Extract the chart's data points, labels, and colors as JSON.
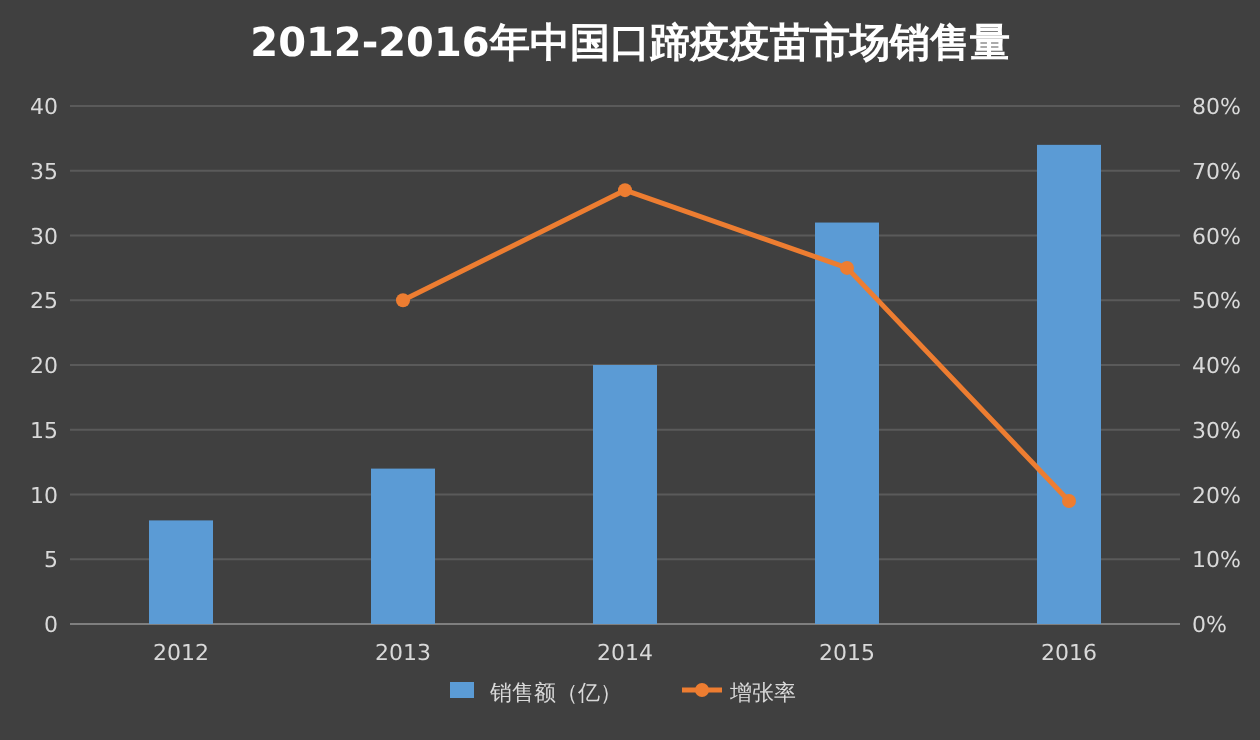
{
  "chart_data": {
    "type": "bar",
    "title": "2012-2016年中国口蹄疫疫苗市场销售量",
    "categories": [
      "2012",
      "2013",
      "2014",
      "2015",
      "2016"
    ],
    "series": [
      {
        "name": "销售额（亿）",
        "color": "#5b9bd5",
        "values": [
          8,
          12,
          20,
          31,
          37
        ]
      },
      {
        "name": "增张率",
        "type": "line",
        "axis": "y2",
        "color": "#ed7d31",
        "marker": "circle",
        "values": [
          null,
          50,
          67,
          55,
          19
        ]
      }
    ],
    "ylim": [
      0,
      40
    ],
    "yticks": [
      0,
      5,
      10,
      15,
      20,
      25,
      30,
      35,
      40
    ],
    "y2lim": [
      0,
      80
    ],
    "y2ticks": [
      {
        "value": 0,
        "label": "0%"
      },
      {
        "value": 10,
        "label": "10%"
      },
      {
        "value": 20,
        "label": "20%"
      },
      {
        "value": 30,
        "label": "30%"
      },
      {
        "value": 40,
        "label": "40%"
      },
      {
        "value": 50,
        "label": "50%"
      },
      {
        "value": 60,
        "label": "60%"
      },
      {
        "value": 70,
        "label": "70%"
      },
      {
        "value": 80,
        "label": "80%"
      }
    ],
    "grid": "y",
    "legend": "bottom"
  }
}
